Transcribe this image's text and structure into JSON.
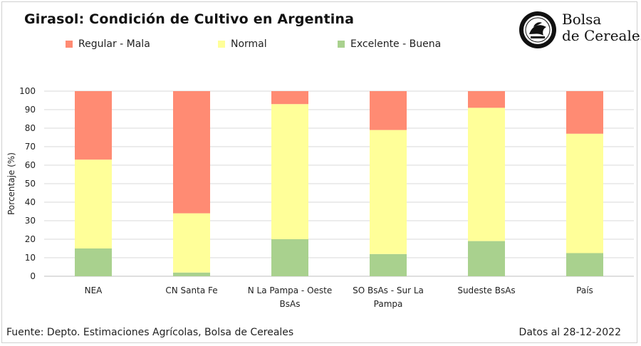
{
  "header": {
    "title": "Girasol: Condición de Cultivo en Argentina"
  },
  "logo": {
    "line1": "Bolsa",
    "line2": "de Cereales"
  },
  "footer": {
    "source": "Fuente: Depto. Estimaciones Agrícolas, Bolsa de Cereales",
    "date": "Datos al 28-12-2022"
  },
  "chart_data": {
    "type": "bar",
    "stacked": true,
    "title": "Girasol: Condición de Cultivo en Argentina",
    "ylabel": "Porcentaje (%)",
    "xlabel": "",
    "ylim": [
      0,
      100
    ],
    "yticks": [
      0,
      10,
      20,
      30,
      40,
      50,
      60,
      70,
      80,
      90,
      100
    ],
    "grid": true,
    "legend_position": "top",
    "categories": [
      [
        "NEA"
      ],
      [
        "CN Santa Fe"
      ],
      [
        "N La Pampa - Oeste",
        "BsAs"
      ],
      [
        "SO BsAs - Sur La",
        "Pampa"
      ],
      [
        "Sudeste BsAs"
      ],
      [
        "País"
      ]
    ],
    "legend_order": [
      "Regular - Mala",
      "Normal",
      "Excelente - Buena"
    ],
    "series": [
      {
        "name": "Excelente - Buena",
        "color": "#a9d18e",
        "values": [
          15,
          2,
          20,
          12,
          19,
          12.5
        ]
      },
      {
        "name": "Normal",
        "color": "#ffff99",
        "values": [
          48,
          32,
          73,
          67,
          72,
          64.5
        ]
      },
      {
        "name": "Regular - Mala",
        "color": "#ff8b73",
        "values": [
          37,
          66,
          7,
          21,
          9,
          23
        ]
      }
    ]
  }
}
